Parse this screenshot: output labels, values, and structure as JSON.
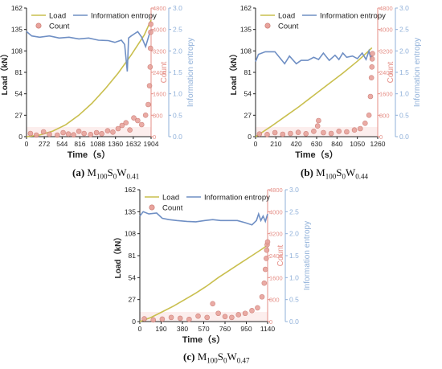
{
  "colors": {
    "load": "#c9bf4e",
    "entropy": "#6f8fc4",
    "count": "#e8a39c",
    "count_edge": "#c9776f",
    "count_axis": "#e58e86",
    "entropy_axis": "#8fb0d9",
    "axis": "#222222"
  },
  "legend_labels": {
    "load": "Load",
    "entropy": "Information entropy",
    "count": "Count"
  },
  "axis_titles": {
    "load": "Load（kN）",
    "count": "Count",
    "entropy": "Information entropy",
    "time": "Time（s）"
  },
  "chart_data": [
    {
      "type": "line",
      "caption": {
        "label": "(a)",
        "m": "M",
        "m_sub": "100",
        "s": "S",
        "s_sub": "0",
        "w": "W",
        "w_sub": "0.41"
      },
      "xlim": [
        0,
        1904
      ],
      "xticks": [
        0,
        272,
        544,
        816,
        1088,
        1360,
        1632,
        1904
      ],
      "load_ylim": [
        0,
        162
      ],
      "load_ticks": [
        0,
        27,
        54,
        81,
        108,
        135,
        162
      ],
      "count_ylim": [
        0,
        4800
      ],
      "count_ticks": [
        0,
        800,
        1600,
        2400,
        3200,
        4000,
        4800
      ],
      "entropy_ylim": [
        0,
        3.0
      ],
      "entropy_ticks": [
        "0.0",
        "0.5",
        "1.0",
        "1.5",
        "2.0",
        "2.5",
        "3.0"
      ],
      "series": [
        {
          "name": "Load",
          "axis": "load",
          "x": [
            0,
            200,
            400,
            600,
            800,
            1000,
            1200,
            1400,
            1600,
            1800,
            1904
          ],
          "y": [
            0,
            2,
            7,
            15,
            27,
            42,
            60,
            80,
            103,
            128,
            147
          ]
        },
        {
          "name": "Information entropy",
          "axis": "entropy",
          "x": [
            0,
            80,
            200,
            350,
            500,
            650,
            800,
            950,
            1100,
            1250,
            1350,
            1450,
            1500,
            1540,
            1560,
            1600,
            1650,
            1700,
            1760,
            1820,
            1880,
            1904
          ],
          "y": [
            2.45,
            2.35,
            2.32,
            2.35,
            2.3,
            2.32,
            2.28,
            2.3,
            2.25,
            2.24,
            2.2,
            2.25,
            2.15,
            1.52,
            2.3,
            2.35,
            2.4,
            2.45,
            2.32,
            2.1,
            2.4,
            2.5
          ]
        },
        {
          "name": "Count",
          "axis": "count",
          "x": [
            60,
            150,
            260,
            350,
            470,
            560,
            640,
            720,
            800,
            880,
            980,
            1070,
            1150,
            1240,
            1320,
            1400,
            1460,
            1520,
            1580,
            1640,
            1700,
            1760,
            1820,
            1860,
            1880,
            1890,
            1895,
            1898,
            1900
          ],
          "y": [
            120,
            60,
            180,
            90,
            60,
            150,
            100,
            70,
            200,
            120,
            80,
            150,
            110,
            220,
            170,
            300,
            420,
            520,
            250,
            700,
            600,
            450,
            800,
            1200,
            1900,
            2600,
            3300,
            3900,
            4200
          ]
        }
      ]
    },
    {
      "type": "line",
      "caption": {
        "label": "(b)",
        "m": "M",
        "m_sub": "100",
        "s": "S",
        "s_sub": "0",
        "w": "W",
        "w_sub": "0.44"
      },
      "xlim": [
        0,
        1260
      ],
      "xticks": [
        0,
        210,
        420,
        630,
        840,
        1050,
        1260
      ],
      "load_ylim": [
        0,
        162
      ],
      "load_ticks": [
        0,
        27,
        54,
        81,
        108,
        135,
        162
      ],
      "count_ylim": [
        0,
        4800
      ],
      "count_ticks": [
        0,
        800,
        1600,
        2400,
        3200,
        4000,
        4800
      ],
      "entropy_ylim": [
        0,
        3.0
      ],
      "entropy_ticks": [
        "0.0",
        "0.5",
        "1.0",
        "1.5",
        "2.0",
        "2.5",
        "3.0"
      ],
      "series": [
        {
          "name": "Load",
          "axis": "load",
          "x": [
            0,
            150,
            300,
            450,
            600,
            750,
            900,
            1050,
            1150,
            1200
          ],
          "y": [
            0,
            12,
            25,
            38,
            52,
            66,
            80,
            95,
            106,
            112
          ]
        },
        {
          "name": "Information entropy",
          "axis": "entropy",
          "x": [
            0,
            30,
            100,
            200,
            300,
            350,
            420,
            470,
            540,
            600,
            650,
            700,
            760,
            820,
            860,
            900,
            940,
            1000,
            1050,
            1100,
            1140,
            1170,
            1190,
            1200
          ],
          "y": [
            1.75,
            1.92,
            1.98,
            1.98,
            1.7,
            1.88,
            1.7,
            1.78,
            1.78,
            1.85,
            1.8,
            1.95,
            1.78,
            1.9,
            1.8,
            1.95,
            1.85,
            1.88,
            1.82,
            1.95,
            1.8,
            2.0,
            1.8,
            1.9
          ]
        },
        {
          "name": "Count",
          "axis": "count",
          "x": [
            40,
            120,
            200,
            280,
            360,
            440,
            520,
            600,
            640,
            650,
            700,
            780,
            860,
            940,
            1020,
            1080,
            1130,
            1170,
            1185,
            1195,
            1200,
            1203,
            1206
          ],
          "y": [
            100,
            80,
            150,
            90,
            120,
            160,
            110,
            200,
            400,
            600,
            150,
            120,
            200,
            180,
            250,
            300,
            500,
            800,
            1500,
            2200,
            2600,
            2900,
            3100
          ]
        }
      ]
    },
    {
      "type": "line",
      "caption": {
        "label": "(c)",
        "m": "M",
        "m_sub": "100",
        "s": "S",
        "s_sub": "0",
        "w": "W",
        "w_sub": "0.47"
      },
      "xlim": [
        0,
        1140
      ],
      "xticks": [
        0,
        190,
        380,
        570,
        760,
        950,
        1140
      ],
      "load_ylim": [
        0,
        162
      ],
      "load_ticks": [
        0,
        27,
        54,
        81,
        108,
        135,
        162
      ],
      "count_ylim": [
        0,
        4800
      ],
      "count_ticks": [
        0,
        800,
        1600,
        2400,
        3200,
        4000,
        4800
      ],
      "entropy_ylim": [
        0,
        3.0
      ],
      "entropy_ticks": [
        "0.0",
        "0.5",
        "1.0",
        "1.5",
        "2.0",
        "2.5",
        "3.0"
      ],
      "series": [
        {
          "name": "Load",
          "axis": "load",
          "x": [
            0,
            100,
            200,
            300,
            400,
            500,
            600,
            700,
            800,
            900,
            1000,
            1100,
            1140
          ],
          "y": [
            0,
            5,
            12,
            19,
            27,
            35,
            44,
            54,
            63,
            72,
            81,
            90,
            94
          ]
        },
        {
          "name": "Information entropy",
          "axis": "entropy",
          "x": [
            0,
            30,
            80,
            150,
            200,
            260,
            330,
            420,
            500,
            580,
            650,
            720,
            800,
            870,
            940,
            1000,
            1040,
            1060,
            1080,
            1100,
            1120,
            1140
          ],
          "y": [
            2.4,
            2.5,
            2.45,
            2.47,
            2.35,
            2.32,
            2.3,
            2.28,
            2.27,
            2.3,
            2.32,
            2.3,
            2.3,
            2.3,
            2.25,
            2.2,
            2.3,
            2.45,
            2.3,
            2.4,
            2.28,
            2.45
          ]
        },
        {
          "name": "Count",
          "axis": "count",
          "x": [
            40,
            120,
            200,
            280,
            360,
            440,
            520,
            600,
            650,
            700,
            760,
            820,
            880,
            940,
            1000,
            1050,
            1090,
            1110,
            1120,
            1128,
            1132,
            1136,
            1140
          ],
          "y": [
            100,
            60,
            90,
            150,
            120,
            80,
            200,
            150,
            650,
            300,
            180,
            150,
            250,
            300,
            400,
            500,
            900,
            1400,
            1900,
            2300,
            2600,
            2800,
            2900
          ]
        }
      ]
    }
  ]
}
